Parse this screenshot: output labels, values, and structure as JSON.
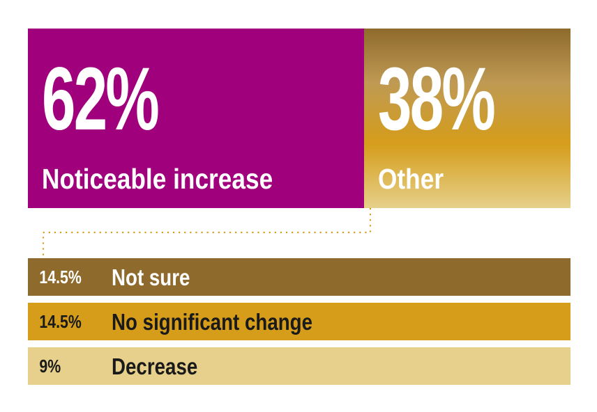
{
  "chart_data": {
    "type": "bar",
    "main": [
      {
        "percent_label": "62%",
        "label": "Noticeable increase",
        "value": 62,
        "color": "#a0007c"
      },
      {
        "percent_label": "38%",
        "label": "Other",
        "value": 38,
        "color": "#c49a4a"
      }
    ],
    "breakdown": [
      {
        "percent_label": "14.5%",
        "label": "Not sure",
        "value": 14.5,
        "color": "#8e6a2c",
        "text_color": "#ffffff"
      },
      {
        "percent_label": "14.5%",
        "label": "No significant change",
        "value": 14.5,
        "color": "#d59d1a",
        "text_color": "#1a1a1a"
      },
      {
        "percent_label": "9%",
        "label": "Decrease",
        "value": 9,
        "color": "#e6d08b",
        "text_color": "#1a1a1a"
      }
    ],
    "connector_color": "#d59d1a"
  }
}
